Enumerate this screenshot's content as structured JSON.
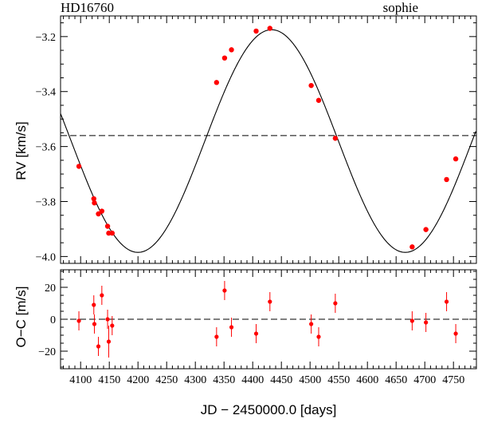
{
  "header": {
    "star_label": "HD16760",
    "instrument_label": "sophie"
  },
  "chart_data": [
    {
      "type": "scatter",
      "panel": "top",
      "xlabel": "",
      "ylabel": "RV [km/s]",
      "xlim": [
        4065,
        4790
      ],
      "ylim": [
        -4.025,
        -3.125
      ],
      "yticks": [
        -4.0,
        -3.8,
        -3.6,
        -3.4,
        -3.2
      ],
      "ytick_labels": [
        "−4.0",
        "−3.8",
        "−3.6",
        "−3.4",
        "−3.2"
      ],
      "model_curve": {
        "kind": "sinusoid",
        "period_days": 466,
        "min_time": 4200,
        "mean": -3.58,
        "amplitude": 0.405
      },
      "reference_line": -3.56,
      "points": [
        {
          "x": 4097,
          "y": -3.672
        },
        {
          "x": 4123,
          "y": -3.79
        },
        {
          "x": 4124,
          "y": -3.805
        },
        {
          "x": 4131,
          "y": -3.845
        },
        {
          "x": 4137,
          "y": -3.835
        },
        {
          "x": 4147,
          "y": -3.89
        },
        {
          "x": 4149,
          "y": -3.915
        },
        {
          "x": 4155,
          "y": -3.915
        },
        {
          "x": 4337,
          "y": -3.367
        },
        {
          "x": 4351,
          "y": -3.278
        },
        {
          "x": 4363,
          "y": -3.248
        },
        {
          "x": 4406,
          "y": -3.18
        },
        {
          "x": 4430,
          "y": -3.17
        },
        {
          "x": 4502,
          "y": -3.378
        },
        {
          "x": 4515,
          "y": -3.432
        },
        {
          "x": 4544,
          "y": -3.57
        },
        {
          "x": 4678,
          "y": -3.965
        },
        {
          "x": 4702,
          "y": -3.902
        },
        {
          "x": 4738,
          "y": -3.72
        },
        {
          "x": 4754,
          "y": -3.645
        }
      ]
    },
    {
      "type": "scatter",
      "panel": "bottom",
      "xlabel": "JD − 2450000.0 [days]",
      "ylabel": "O−C [m/s]",
      "xlim": [
        4065,
        4790
      ],
      "ylim": [
        -31,
        31
      ],
      "xticks": [
        4100,
        4150,
        4200,
        4250,
        4300,
        4350,
        4400,
        4450,
        4500,
        4550,
        4600,
        4650,
        4700,
        4750
      ],
      "xtick_labels": [
        "4100",
        "4150",
        "4200",
        "4250",
        "4300",
        "4350",
        "4400",
        "4450",
        "4500",
        "4550",
        "4600",
        "4650",
        "4700",
        "4750"
      ],
      "yticks": [
        -20,
        0,
        20
      ],
      "ytick_labels": [
        "−20",
        "0",
        "20"
      ],
      "reference_line": 0,
      "points": [
        {
          "x": 4097,
          "y": -1,
          "err": 6
        },
        {
          "x": 4123,
          "y": 9,
          "err": 6
        },
        {
          "x": 4124,
          "y": -3,
          "err": 6
        },
        {
          "x": 4131,
          "y": -17,
          "err": 6
        },
        {
          "x": 4137,
          "y": 15,
          "err": 6
        },
        {
          "x": 4147,
          "y": 0,
          "err": 6
        },
        {
          "x": 4149,
          "y": -14,
          "err": 10
        },
        {
          "x": 4155,
          "y": -4,
          "err": 6
        },
        {
          "x": 4337,
          "y": -11,
          "err": 6
        },
        {
          "x": 4351,
          "y": 18,
          "err": 6
        },
        {
          "x": 4363,
          "y": -5,
          "err": 6
        },
        {
          "x": 4406,
          "y": -9,
          "err": 6
        },
        {
          "x": 4430,
          "y": 11,
          "err": 6
        },
        {
          "x": 4502,
          "y": -3,
          "err": 6
        },
        {
          "x": 4515,
          "y": -11,
          "err": 6
        },
        {
          "x": 4544,
          "y": 10,
          "err": 6
        },
        {
          "x": 4678,
          "y": -1,
          "err": 6
        },
        {
          "x": 4702,
          "y": -2,
          "err": 6
        },
        {
          "x": 4738,
          "y": 11,
          "err": 6
        },
        {
          "x": 4754,
          "y": -9,
          "err": 6
        }
      ]
    }
  ],
  "colors": {
    "points": "#ff0000",
    "model": "#000000"
  }
}
